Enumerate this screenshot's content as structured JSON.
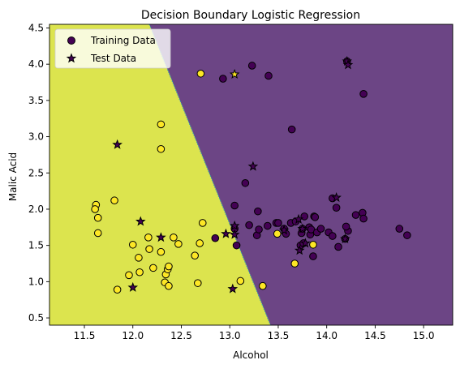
{
  "chart_data": {
    "type": "scatter",
    "title": "Decision Boundary Logistic Regression",
    "xlabel": "Alcohol",
    "ylabel": "Malic Acid",
    "xlim": [
      11.14,
      15.3
    ],
    "ylim": [
      0.4,
      4.55
    ],
    "xticks": [
      11.5,
      12.0,
      12.5,
      13.0,
      13.5,
      14.0,
      14.5,
      15.0
    ],
    "yticks": [
      0.5,
      1.0,
      1.5,
      2.0,
      2.5,
      3.0,
      3.5,
      4.0,
      4.5
    ],
    "grid": false,
    "legend": {
      "position": "top-left",
      "entries": [
        {
          "label": "Training Data",
          "marker": "circle"
        },
        {
          "label": "Test Data",
          "marker": "star"
        }
      ]
    },
    "decision_boundary": {
      "points": [
        [
          12.17,
          4.55
        ],
        [
          13.42,
          0.4
        ]
      ],
      "class_colors": {
        "low_alcohol": "#dce44e",
        "high_alcohol": "#6c4585"
      }
    },
    "point_colors": {
      "yellow": "#fde725",
      "purple": "#440154",
      "edge": "#000000"
    },
    "training_data": [
      {
        "x": 11.62,
        "y": 2.06,
        "c": "yellow"
      },
      {
        "x": 11.61,
        "y": 2.0,
        "c": "yellow"
      },
      {
        "x": 11.64,
        "y": 1.88,
        "c": "yellow"
      },
      {
        "x": 11.64,
        "y": 1.67,
        "c": "yellow"
      },
      {
        "x": 11.81,
        "y": 2.12,
        "c": "yellow"
      },
      {
        "x": 11.84,
        "y": 0.89,
        "c": "yellow"
      },
      {
        "x": 11.96,
        "y": 1.09,
        "c": "yellow"
      },
      {
        "x": 12.0,
        "y": 1.51,
        "c": "yellow"
      },
      {
        "x": 12.06,
        "y": 1.33,
        "c": "yellow"
      },
      {
        "x": 12.07,
        "y": 1.13,
        "c": "yellow"
      },
      {
        "x": 12.16,
        "y": 1.61,
        "c": "yellow"
      },
      {
        "x": 12.17,
        "y": 1.45,
        "c": "yellow"
      },
      {
        "x": 12.21,
        "y": 1.19,
        "c": "yellow"
      },
      {
        "x": 12.29,
        "y": 1.41,
        "c": "yellow"
      },
      {
        "x": 12.29,
        "y": 3.17,
        "c": "yellow"
      },
      {
        "x": 12.29,
        "y": 2.83,
        "c": "yellow"
      },
      {
        "x": 12.33,
        "y": 0.99,
        "c": "yellow"
      },
      {
        "x": 12.34,
        "y": 1.1,
        "c": "yellow"
      },
      {
        "x": 12.36,
        "y": 1.17,
        "c": "yellow"
      },
      {
        "x": 12.37,
        "y": 1.21,
        "c": "yellow"
      },
      {
        "x": 12.37,
        "y": 0.94,
        "c": "yellow"
      },
      {
        "x": 12.42,
        "y": 1.61,
        "c": "yellow"
      },
      {
        "x": 12.47,
        "y": 1.52,
        "c": "yellow"
      },
      {
        "x": 12.64,
        "y": 1.36,
        "c": "yellow"
      },
      {
        "x": 12.67,
        "y": 0.98,
        "c": "yellow"
      },
      {
        "x": 12.69,
        "y": 1.53,
        "c": "yellow"
      },
      {
        "x": 12.7,
        "y": 3.87,
        "c": "yellow"
      },
      {
        "x": 12.72,
        "y": 1.81,
        "c": "yellow"
      },
      {
        "x": 12.85,
        "y": 1.6,
        "c": "purple"
      },
      {
        "x": 12.93,
        "y": 3.8,
        "c": "purple"
      },
      {
        "x": 13.05,
        "y": 2.05,
        "c": "purple"
      },
      {
        "x": 13.05,
        "y": 1.73,
        "c": "purple"
      },
      {
        "x": 13.07,
        "y": 1.5,
        "c": "purple"
      },
      {
        "x": 13.11,
        "y": 1.01,
        "c": "yellow"
      },
      {
        "x": 13.16,
        "y": 2.36,
        "c": "purple"
      },
      {
        "x": 13.2,
        "y": 1.78,
        "c": "purple"
      },
      {
        "x": 13.23,
        "y": 3.98,
        "c": "purple"
      },
      {
        "x": 13.28,
        "y": 1.64,
        "c": "purple"
      },
      {
        "x": 13.29,
        "y": 1.97,
        "c": "purple"
      },
      {
        "x": 13.3,
        "y": 1.72,
        "c": "purple"
      },
      {
        "x": 13.34,
        "y": 0.94,
        "c": "yellow"
      },
      {
        "x": 13.39,
        "y": 1.77,
        "c": "purple"
      },
      {
        "x": 13.4,
        "y": 3.84,
        "c": "purple"
      },
      {
        "x": 13.48,
        "y": 1.81,
        "c": "purple"
      },
      {
        "x": 13.49,
        "y": 1.66,
        "c": "yellow"
      },
      {
        "x": 13.5,
        "y": 1.81,
        "c": "purple"
      },
      {
        "x": 13.56,
        "y": 1.73,
        "c": "purple"
      },
      {
        "x": 13.58,
        "y": 1.66,
        "c": "purple"
      },
      {
        "x": 13.63,
        "y": 1.81,
        "c": "purple"
      },
      {
        "x": 13.64,
        "y": 3.1,
        "c": "purple"
      },
      {
        "x": 13.67,
        "y": 1.25,
        "c": "yellow"
      },
      {
        "x": 13.68,
        "y": 1.83,
        "c": "purple"
      },
      {
        "x": 13.73,
        "y": 1.5,
        "c": "purple"
      },
      {
        "x": 13.74,
        "y": 1.67,
        "c": "purple"
      },
      {
        "x": 13.75,
        "y": 1.73,
        "c": "purple"
      },
      {
        "x": 13.76,
        "y": 1.53,
        "c": "purple"
      },
      {
        "x": 13.77,
        "y": 1.9,
        "c": "purple"
      },
      {
        "x": 13.82,
        "y": 1.75,
        "c": "purple"
      },
      {
        "x": 13.83,
        "y": 1.65,
        "c": "purple"
      },
      {
        "x": 13.84,
        "y": 1.72,
        "c": "purple"
      },
      {
        "x": 13.86,
        "y": 1.51,
        "c": "yellow"
      },
      {
        "x": 13.86,
        "y": 1.35,
        "c": "purple"
      },
      {
        "x": 13.87,
        "y": 1.9,
        "c": "purple"
      },
      {
        "x": 13.88,
        "y": 1.89,
        "c": "purple"
      },
      {
        "x": 13.9,
        "y": 1.68,
        "c": "purple"
      },
      {
        "x": 13.94,
        "y": 1.73,
        "c": "purple"
      },
      {
        "x": 14.02,
        "y": 1.68,
        "c": "purple"
      },
      {
        "x": 14.06,
        "y": 2.15,
        "c": "purple"
      },
      {
        "x": 14.06,
        "y": 1.63,
        "c": "purple"
      },
      {
        "x": 14.1,
        "y": 2.02,
        "c": "purple"
      },
      {
        "x": 14.12,
        "y": 1.48,
        "c": "purple"
      },
      {
        "x": 14.19,
        "y": 1.59,
        "c": "purple"
      },
      {
        "x": 14.21,
        "y": 4.04,
        "c": "purple"
      },
      {
        "x": 14.22,
        "y": 1.7,
        "c": "purple"
      },
      {
        "x": 14.2,
        "y": 1.76,
        "c": "purple"
      },
      {
        "x": 14.3,
        "y": 1.92,
        "c": "purple"
      },
      {
        "x": 14.37,
        "y": 1.95,
        "c": "purple"
      },
      {
        "x": 14.38,
        "y": 1.87,
        "c": "purple"
      },
      {
        "x": 14.38,
        "y": 3.59,
        "c": "purple"
      },
      {
        "x": 14.75,
        "y": 1.73,
        "c": "purple"
      },
      {
        "x": 14.83,
        "y": 1.64,
        "c": "purple"
      }
    ],
    "test_data": [
      {
        "x": 11.84,
        "y": 2.89,
        "c": "purple"
      },
      {
        "x": 12.0,
        "y": 0.92,
        "c": "purple"
      },
      {
        "x": 12.08,
        "y": 1.83,
        "c": "purple"
      },
      {
        "x": 12.29,
        "y": 1.61,
        "c": "purple"
      },
      {
        "x": 12.96,
        "y": 1.66,
        "c": "purple"
      },
      {
        "x": 13.03,
        "y": 0.9,
        "c": "purple"
      },
      {
        "x": 13.05,
        "y": 1.77,
        "c": "purple"
      },
      {
        "x": 13.05,
        "y": 1.65,
        "c": "purple"
      },
      {
        "x": 13.05,
        "y": 3.86,
        "c": "yellow"
      },
      {
        "x": 13.24,
        "y": 2.59,
        "c": "purple"
      },
      {
        "x": 13.56,
        "y": 1.71,
        "c": "purple"
      },
      {
        "x": 13.71,
        "y": 1.86,
        "c": "purple"
      },
      {
        "x": 13.72,
        "y": 1.43,
        "c": "purple"
      },
      {
        "x": 13.75,
        "y": 1.73,
        "c": "purple"
      },
      {
        "x": 13.78,
        "y": 1.53,
        "c": "purple"
      },
      {
        "x": 14.1,
        "y": 2.16,
        "c": "purple"
      },
      {
        "x": 14.19,
        "y": 1.59,
        "c": "purple"
      },
      {
        "x": 14.21,
        "y": 4.04,
        "c": "purple"
      },
      {
        "x": 14.22,
        "y": 3.99,
        "c": "purple"
      }
    ]
  }
}
